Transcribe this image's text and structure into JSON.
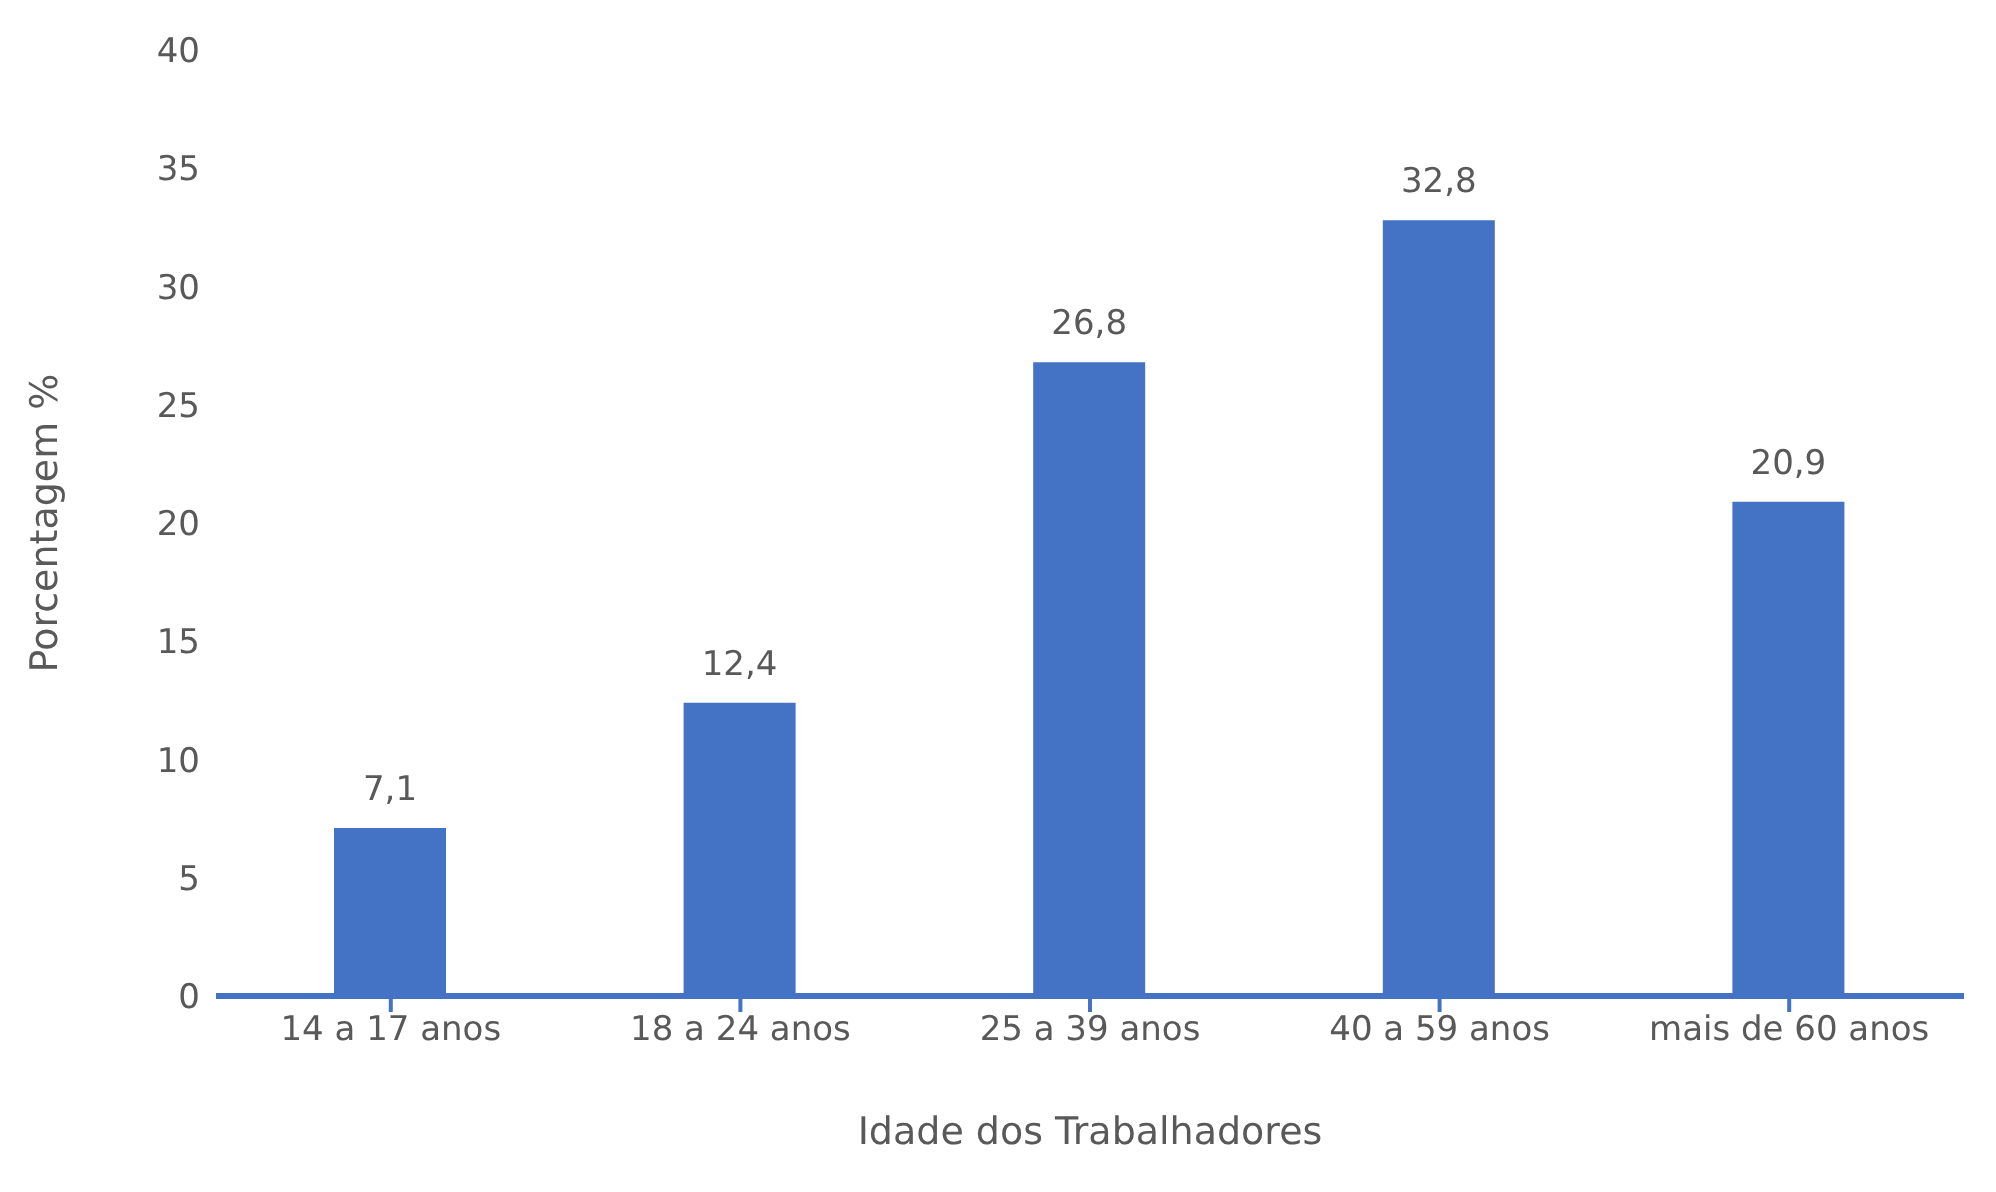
{
  "chart_data": {
    "type": "bar",
    "xlabel": "Idade dos Trabalhadores",
    "ylabel": "Porcentagem %",
    "categories": [
      "14 a 17 anos",
      "18 a 24 anos",
      "25 a 39 anos",
      "40 a 59 anos",
      "mais de 60 anos"
    ],
    "values": [
      7.1,
      12.4,
      26.8,
      32.8,
      20.9
    ],
    "value_labels": [
      "7,1",
      "12,4",
      "26,8",
      "32,8",
      "20,9"
    ],
    "color": "#4472c4",
    "ylim": [
      0,
      40
    ],
    "yticks": [
      0,
      5,
      10,
      15,
      20,
      25,
      30,
      35,
      40
    ]
  }
}
